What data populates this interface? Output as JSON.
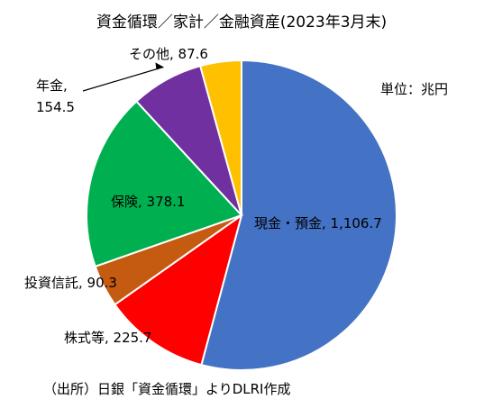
{
  "chart_data": {
    "type": "pie",
    "title": "資金循環／家計／金融資産(2023年3月末)",
    "unit_label": "単位：兆円",
    "source": "（出所）日銀「資金循環」よりDLRI作成",
    "slices": [
      {
        "name": "現金・預金",
        "value": 1106.7,
        "value_label": "1,106.7",
        "color": "#4472C4"
      },
      {
        "name": "株式等",
        "value": 225.7,
        "value_label": "225.7",
        "color": "#FF0000"
      },
      {
        "name": "投資信託",
        "value": 90.3,
        "value_label": "90.3",
        "color": "#C55A11"
      },
      {
        "name": "保険",
        "value": 378.1,
        "value_label": "378.1",
        "color": "#00B050"
      },
      {
        "name": "年金",
        "value": 154.5,
        "value_label": "154.5",
        "color": "#7030A0"
      },
      {
        "name": "その他",
        "value": 87.6,
        "value_label": "87.6",
        "color": "#FFC000"
      }
    ],
    "start": "12 o'clock",
    "direction": "clockwise",
    "legend": "none"
  }
}
